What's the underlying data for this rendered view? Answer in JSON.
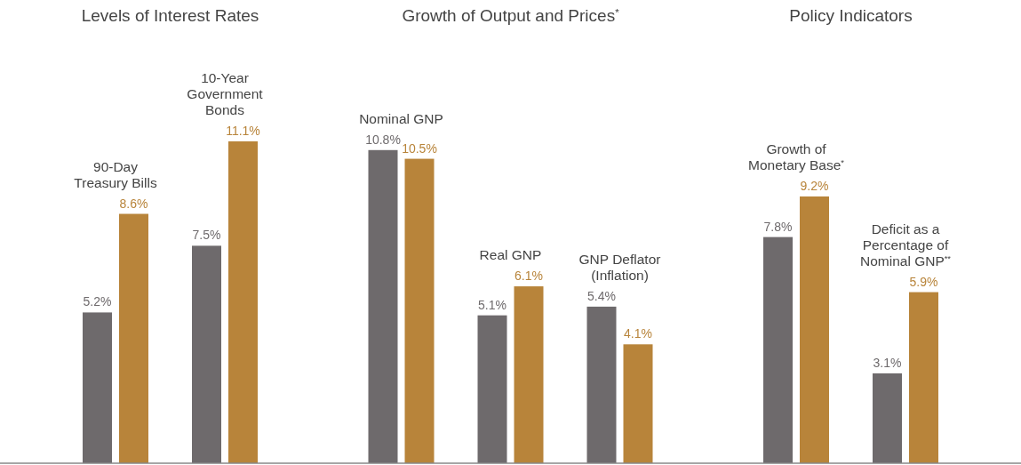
{
  "chart_data": [
    {
      "type": "bar",
      "title": "Levels of Interest Rates",
      "categories": [
        null,
        null
      ],
      "annotations": [
        "90-Day Treasury Bills",
        "10-Year Government Bonds"
      ],
      "series": [
        {
          "color": "#6e6a6c",
          "values": [
            5.2,
            7.5
          ],
          "value_labels": [
            "5.2%",
            "7.5%"
          ]
        },
        {
          "color": "#b8843a",
          "values": [
            8.6,
            11.1
          ],
          "value_labels": [
            "8.6%",
            "11.1%"
          ]
        }
      ]
    },
    {
      "type": "bar",
      "title": "Growth of Output and Prices$^{*}$",
      "categories": [
        null,
        null,
        null
      ],
      "annotations": [
        "Nominal GNP",
        "Real GNP",
        "GNP Deflator (Inflation)"
      ],
      "series": [
        {
          "color": "#6e6a6c",
          "values": [
            10.8,
            5.1,
            5.4
          ],
          "value_labels": [
            "10.8%",
            "5.1%",
            "5.4%"
          ]
        },
        {
          "color": "#b8843a",
          "values": [
            10.5,
            6.1,
            4.1
          ],
          "value_labels": [
            "10.5%",
            "6.1%",
            "4.1%"
          ]
        }
      ]
    },
    {
      "type": "bar",
      "title": "Policy Indicators",
      "categories": [
        null,
        null
      ],
      "annotations": [
        "Growth of Monetary Base$^{*}$",
        "Deficit as a Percentage of Nominal GNP$^{**}$"
      ],
      "series": [
        {
          "color": "#6e6a6c",
          "values": [
            7.8,
            3.1
          ],
          "value_labels": [
            "7.8%",
            "3.1%"
          ]
        },
        {
          "color": "#b8843a",
          "values": [
            9.2,
            5.9
          ],
          "value_labels": [
            "9.2%",
            "5.9%"
          ]
        }
      ]
    }
  ]
}
